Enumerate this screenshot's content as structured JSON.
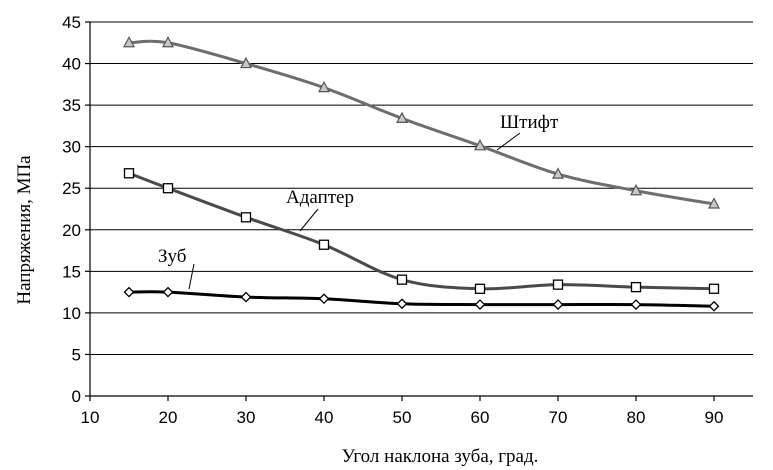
{
  "chart_data": {
    "type": "line",
    "title": "",
    "xlabel": "Угол наклона зуба, град.",
    "ylabel": "Напряжения, МПа",
    "xlim": [
      10,
      95
    ],
    "ylim": [
      0,
      45
    ],
    "x_ticks": [
      10,
      20,
      30,
      40,
      50,
      60,
      70,
      80,
      90
    ],
    "y_ticks": [
      0,
      5,
      10,
      15,
      20,
      25,
      30,
      35,
      40,
      45
    ],
    "grid": "horizontal",
    "legend": "none",
    "series": [
      {
        "name": "Штифт",
        "marker": "triangle",
        "color": "#6e6e6e",
        "marker_fill": "#c8c8c8",
        "x": [
          15,
          20,
          30,
          40,
          50,
          60,
          70,
          80,
          90
        ],
        "y": [
          42.5,
          42.5,
          40.0,
          37.1,
          33.4,
          30.1,
          26.7,
          24.7,
          23.1
        ]
      },
      {
        "name": "Адаптер",
        "marker": "square",
        "color": "#4a4a4a",
        "marker_fill": "#ffffff",
        "x": [
          15,
          20,
          30,
          40,
          50,
          60,
          70,
          80,
          90
        ],
        "y": [
          26.8,
          25.0,
          21.5,
          18.2,
          14.0,
          12.9,
          13.4,
          13.1,
          12.9
        ]
      },
      {
        "name": "Зуб",
        "marker": "diamond",
        "color": "#000000",
        "marker_fill": "#ffffff",
        "x": [
          15,
          20,
          30,
          40,
          50,
          60,
          70,
          80,
          90
        ],
        "y": [
          12.5,
          12.5,
          11.9,
          11.7,
          11.1,
          11.0,
          11.0,
          11.0,
          10.8
        ]
      }
    ]
  }
}
